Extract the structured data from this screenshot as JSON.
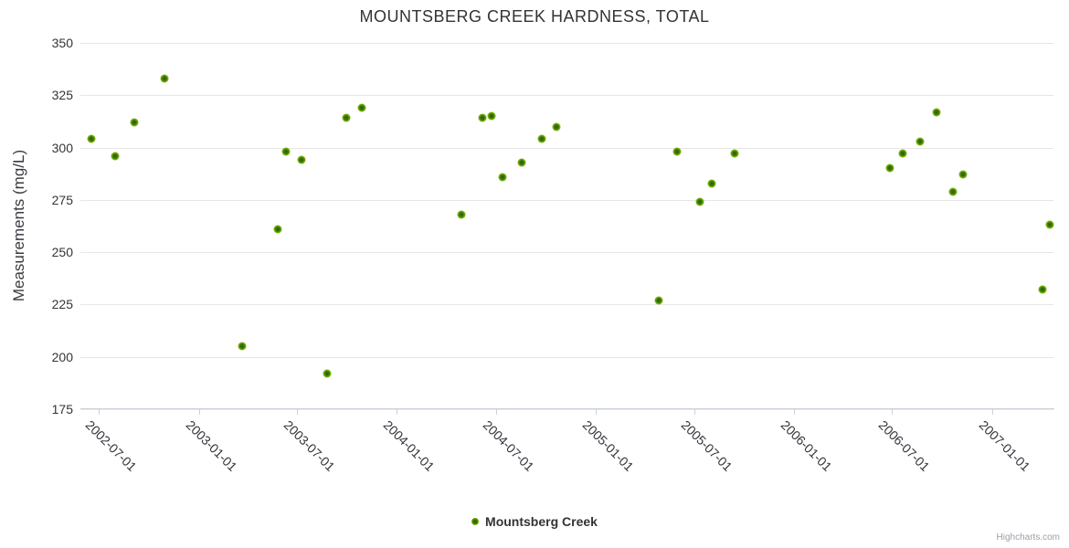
{
  "chart": {
    "title": "MOUNTSBERG CREEK HARDNESS, TOTAL",
    "credits": "Highcharts.com",
    "colors": {
      "marker_outer": "#8dc309",
      "marker_inner": "#2d6a0c",
      "gridline": "#e6e6e6",
      "axis_line": "#ccd1dc",
      "text": "#333338"
    }
  },
  "chart_data": {
    "type": "scatter",
    "title": "MOUNTSBERG CREEK HARDNESS, TOTAL",
    "xlabel": "",
    "ylabel": "Measurements (mg/L)",
    "ylim": [
      175,
      350
    ],
    "y_tick_interval": 25,
    "y_ticks": [
      350,
      325,
      300,
      275,
      250,
      225,
      200,
      175
    ],
    "x_ticks": [
      "2002-07-01",
      "2003-01-01",
      "2003-07-01",
      "2004-01-01",
      "2004-07-01",
      "2005-01-01",
      "2005-07-01",
      "2006-01-01",
      "2006-07-01",
      "2007-01-01"
    ],
    "x_range": [
      "2002-05-28",
      "2007-04-24"
    ],
    "grid": true,
    "legend_position": "bottom-center",
    "series": [
      {
        "name": "Mountsberg Creek",
        "color": "#6fa504",
        "points": [
          {
            "date": "2002-06-17",
            "value": 304
          },
          {
            "date": "2002-07-31",
            "value": 296
          },
          {
            "date": "2002-09-05",
            "value": 312
          },
          {
            "date": "2002-10-30",
            "value": 333
          },
          {
            "date": "2003-03-21",
            "value": 205
          },
          {
            "date": "2003-05-26",
            "value": 261
          },
          {
            "date": "2003-06-11",
            "value": 298
          },
          {
            "date": "2003-07-09",
            "value": 294
          },
          {
            "date": "2003-08-26",
            "value": 192
          },
          {
            "date": "2003-09-29",
            "value": 314
          },
          {
            "date": "2003-10-29",
            "value": 319
          },
          {
            "date": "2004-04-29",
            "value": 268
          },
          {
            "date": "2004-06-07",
            "value": 314
          },
          {
            "date": "2004-06-23",
            "value": 315
          },
          {
            "date": "2004-07-13",
            "value": 286
          },
          {
            "date": "2004-08-17",
            "value": 293
          },
          {
            "date": "2004-09-23",
            "value": 304
          },
          {
            "date": "2004-10-20",
            "value": 310
          },
          {
            "date": "2005-04-27",
            "value": 227
          },
          {
            "date": "2005-05-31",
            "value": 298
          },
          {
            "date": "2005-07-12",
            "value": 274
          },
          {
            "date": "2005-08-02",
            "value": 283
          },
          {
            "date": "2005-09-13",
            "value": 297
          },
          {
            "date": "2006-06-27",
            "value": 290
          },
          {
            "date": "2006-07-20",
            "value": 297
          },
          {
            "date": "2006-08-22",
            "value": 303
          },
          {
            "date": "2006-09-21",
            "value": 317
          },
          {
            "date": "2006-10-21",
            "value": 279
          },
          {
            "date": "2006-11-09",
            "value": 287
          },
          {
            "date": "2007-04-03",
            "value": 232
          },
          {
            "date": "2007-04-17",
            "value": 263
          }
        ]
      }
    ]
  }
}
